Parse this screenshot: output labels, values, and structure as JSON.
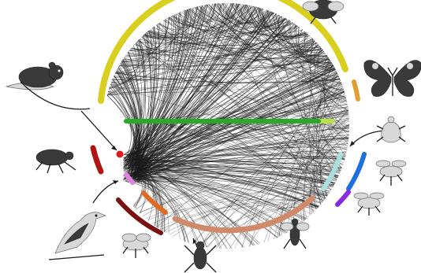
{
  "figure": {
    "type": "circular-interaction-network",
    "background": "#ffffff",
    "link_color": "#1a1a1a"
  },
  "modules": [
    {
      "name": "yellow-module",
      "color": "#d9cf1e"
    },
    {
      "name": "orange-top-module",
      "color": "#e0a030"
    },
    {
      "name": "green-bar-module",
      "color": "#2aa82a"
    },
    {
      "name": "light-green-module",
      "color": "#b7e04a"
    },
    {
      "name": "pale-cyan-module",
      "color": "#a8e0e0"
    },
    {
      "name": "blue-module",
      "color": "#1e6fe0"
    },
    {
      "name": "purple-module",
      "color": "#8a2be2"
    },
    {
      "name": "salmon-module",
      "color": "#d08a6a"
    },
    {
      "name": "orange-bottom-module",
      "color": "#e06a20"
    },
    {
      "name": "dark-red-module",
      "color": "#7a1010"
    },
    {
      "name": "red-module",
      "color": "#b01515"
    },
    {
      "name": "pink-module",
      "color": "#e080e0"
    }
  ],
  "animals": [
    {
      "name": "vole",
      "icon": "vole-icon"
    },
    {
      "name": "flea",
      "icon": "flea-icon"
    },
    {
      "name": "bird",
      "icon": "bird-icon"
    },
    {
      "name": "wasp-left",
      "icon": "wasp-icon"
    },
    {
      "name": "mosquito",
      "icon": "mosquito-icon"
    },
    {
      "name": "fly",
      "icon": "fly-icon"
    },
    {
      "name": "bee",
      "icon": "bee-icon"
    },
    {
      "name": "butterfly",
      "icon": "butterfly-icon"
    },
    {
      "name": "shield-bug",
      "icon": "bug-icon"
    },
    {
      "name": "small-fly",
      "icon": "small-fly-icon"
    },
    {
      "name": "wasp-right",
      "icon": "wasp-icon"
    }
  ]
}
